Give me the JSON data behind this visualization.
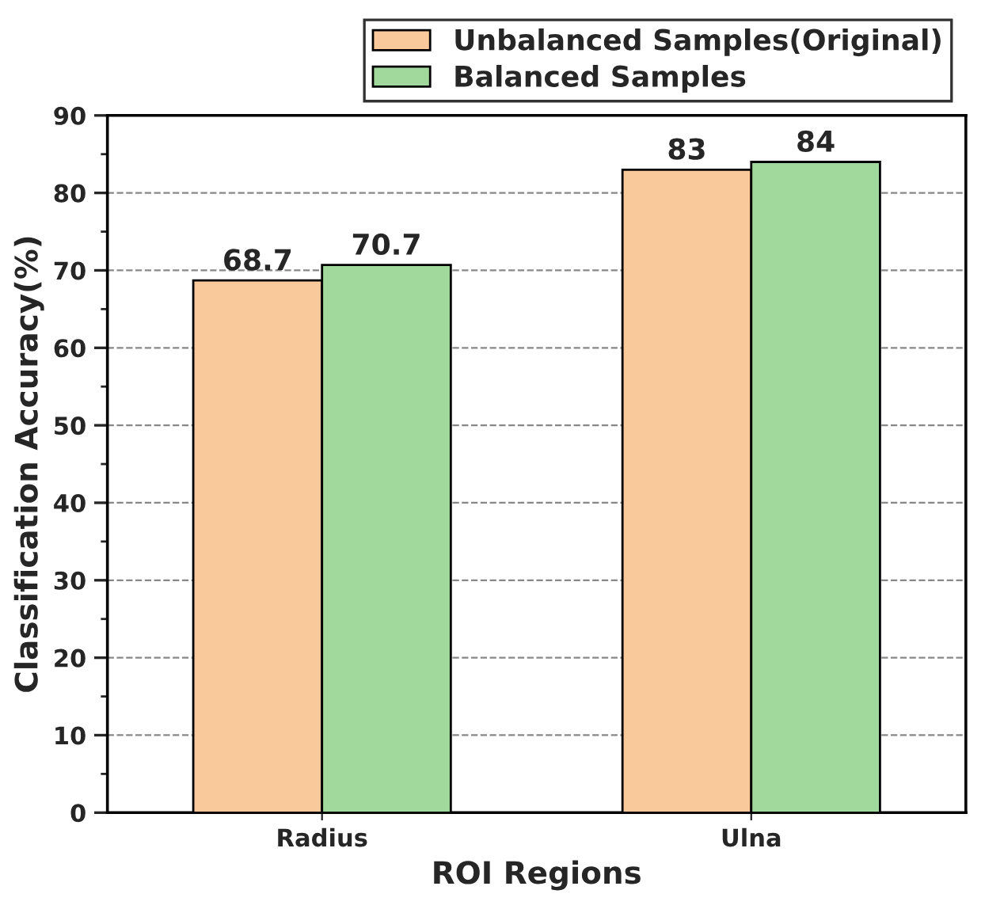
{
  "chart_data": {
    "type": "bar",
    "xlabel": "ROI Regions",
    "ylabel": "Classification Accuracy(%)",
    "categories": [
      "Radius",
      "Ulna"
    ],
    "series": [
      {
        "name": "Unbalanced Samples(Original)",
        "color": "#f9c89b",
        "values": [
          68.7,
          83
        ]
      },
      {
        "name": "Balanced Samples",
        "color": "#a0d99b",
        "values": [
          70.7,
          84
        ]
      }
    ],
    "ylim": [
      0,
      90
    ],
    "yticks": [
      0,
      10,
      20,
      30,
      40,
      50,
      60,
      70,
      80,
      90
    ],
    "grid": "y",
    "legend": "top right",
    "data_labels": true
  }
}
